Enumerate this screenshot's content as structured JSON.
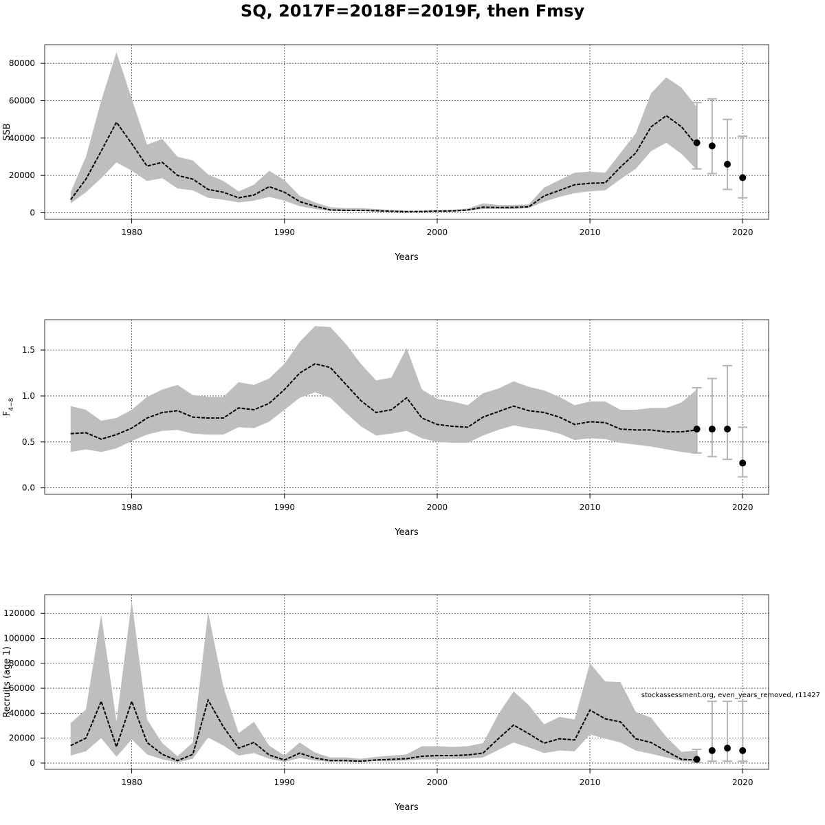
{
  "title": "SQ, 2017F=2018F=2019F, then Fmsy",
  "watermark": "stockassessment.org, even_years_removed, r11427",
  "chart_data": [
    {
      "type": "line",
      "xlabel": "Years",
      "ylabel": "SSB",
      "xlim": [
        1974.3,
        2021.7
      ],
      "ylim": [
        -3500,
        90000
      ],
      "xticks": [
        1980,
        1990,
        2000,
        2010,
        2020
      ],
      "yticks": [
        0,
        20000,
        40000,
        60000,
        80000
      ],
      "ytick_labels": [
        "0",
        "20000",
        "40000",
        "60000",
        "80000"
      ],
      "grid": true,
      "series": [
        {
          "role": "estimate",
          "x": [
            1976,
            1977,
            1978,
            1979,
            1980,
            1981,
            1982,
            1983,
            1984,
            1985,
            1986,
            1987,
            1988,
            1989,
            1990,
            1991,
            1992,
            1993,
            1994,
            1995,
            1996,
            1997,
            1998,
            1999,
            2000,
            2001,
            2002,
            2003,
            2004,
            2005,
            2006,
            2007,
            2008,
            2009,
            2010,
            2011,
            2012,
            2013,
            2014,
            2015,
            2016,
            2017
          ],
          "values": [
            7000,
            18000,
            33000,
            48500,
            37000,
            25000,
            27000,
            20000,
            18000,
            12500,
            11000,
            8000,
            9500,
            14000,
            11000,
            6000,
            3500,
            1500,
            1300,
            1300,
            1100,
            800,
            600,
            700,
            900,
            1000,
            1500,
            3000,
            2800,
            2900,
            3200,
            9000,
            12000,
            15000,
            15800,
            16000,
            24500,
            32000,
            46000,
            52000,
            46000,
            36000
          ]
        }
      ],
      "band": {
        "role": "confidence-interval",
        "lower": [
          5000,
          11000,
          18500,
          27000,
          22500,
          17000,
          18500,
          13000,
          12000,
          8000,
          7000,
          5500,
          6500,
          8500,
          6500,
          3500,
          2000,
          1000,
          900,
          900,
          700,
          500,
          400,
          400,
          600,
          600,
          1000,
          2000,
          2000,
          2000,
          2500,
          6000,
          8500,
          10500,
          11500,
          12000,
          18000,
          23500,
          33000,
          37500,
          31500,
          23000
        ],
        "upper": [
          11000,
          30000,
          60000,
          86000,
          61000,
          36500,
          39500,
          30000,
          28000,
          20500,
          17000,
          11500,
          15000,
          22500,
          17500,
          9000,
          5500,
          3000,
          2500,
          2500,
          2000,
          1500,
          1200,
          1100,
          1400,
          1600,
          2300,
          5000,
          4200,
          4200,
          4500,
          13500,
          17500,
          21500,
          22000,
          21500,
          32000,
          42500,
          64000,
          72500,
          67000,
          56500
        ]
      },
      "forecast": {
        "years": [
          2017,
          2018,
          2019,
          2020
        ],
        "values": [
          37500,
          35800,
          26000,
          18800
        ],
        "lower": [
          23500,
          21000,
          12500,
          8000
        ],
        "upper": [
          59000,
          61000,
          50000,
          41000
        ]
      }
    },
    {
      "type": "line",
      "xlabel": "Years",
      "ylabel": "F",
      "ylabel_subscript": "4−8",
      "xlim": [
        1974.3,
        2021.7
      ],
      "ylim": [
        -0.07,
        1.83
      ],
      "xticks": [
        1980,
        1990,
        2000,
        2010,
        2020
      ],
      "yticks": [
        0.0,
        0.5,
        1.0,
        1.5
      ],
      "ytick_labels": [
        "0.0",
        "0.5",
        "1.0",
        "1.5"
      ],
      "grid": true,
      "series": [
        {
          "role": "estimate",
          "x": [
            1976,
            1977,
            1978,
            1979,
            1980,
            1981,
            1982,
            1983,
            1984,
            1985,
            1986,
            1987,
            1988,
            1989,
            1990,
            1991,
            1992,
            1993,
            1994,
            1995,
            1996,
            1997,
            1998,
            1999,
            2000,
            2001,
            2002,
            2003,
            2004,
            2005,
            2006,
            2007,
            2008,
            2009,
            2010,
            2011,
            2012,
            2013,
            2014,
            2015,
            2016,
            2017
          ],
          "values": [
            0.59,
            0.6,
            0.53,
            0.58,
            0.65,
            0.76,
            0.82,
            0.84,
            0.77,
            0.76,
            0.76,
            0.87,
            0.85,
            0.92,
            1.07,
            1.25,
            1.35,
            1.31,
            1.13,
            0.95,
            0.82,
            0.85,
            0.98,
            0.76,
            0.69,
            0.67,
            0.66,
            0.77,
            0.83,
            0.89,
            0.84,
            0.82,
            0.77,
            0.69,
            0.72,
            0.71,
            0.64,
            0.63,
            0.63,
            0.61,
            0.61,
            0.63
          ]
        }
      ],
      "band": {
        "role": "confidence-interval",
        "lower": [
          0.39,
          0.42,
          0.39,
          0.43,
          0.51,
          0.58,
          0.62,
          0.63,
          0.59,
          0.58,
          0.58,
          0.66,
          0.65,
          0.72,
          0.85,
          0.98,
          1.04,
          0.98,
          0.82,
          0.67,
          0.57,
          0.59,
          0.62,
          0.54,
          0.5,
          0.49,
          0.49,
          0.57,
          0.63,
          0.68,
          0.65,
          0.63,
          0.59,
          0.52,
          0.54,
          0.53,
          0.49,
          0.47,
          0.45,
          0.42,
          0.39,
          0.37
        ],
        "upper": [
          0.89,
          0.85,
          0.73,
          0.76,
          0.85,
          0.99,
          1.07,
          1.12,
          1.01,
          0.99,
          0.99,
          1.15,
          1.12,
          1.19,
          1.35,
          1.59,
          1.76,
          1.75,
          1.57,
          1.35,
          1.17,
          1.2,
          1.52,
          1.07,
          0.97,
          0.94,
          0.9,
          1.03,
          1.08,
          1.16,
          1.1,
          1.06,
          0.99,
          0.9,
          0.94,
          0.94,
          0.85,
          0.85,
          0.87,
          0.87,
          0.93,
          1.07
        ]
      },
      "forecast": {
        "years": [
          2017,
          2018,
          2019,
          2020
        ],
        "values": [
          0.64,
          0.64,
          0.64,
          0.27
        ],
        "lower": [
          0.38,
          0.34,
          0.31,
          0.12
        ],
        "upper": [
          1.09,
          1.19,
          1.33,
          0.66
        ]
      }
    },
    {
      "type": "line",
      "xlabel": "Years",
      "ylabel": "Recruits (age 1)",
      "xlim": [
        1974.3,
        2021.7
      ],
      "ylim": [
        -5000,
        135000
      ],
      "xticks": [
        1980,
        1990,
        2000,
        2010,
        2020
      ],
      "yticks": [
        0,
        20000,
        40000,
        60000,
        80000,
        100000,
        120000
      ],
      "ytick_labels": [
        "0",
        "20000",
        "40000",
        "60000",
        "80000",
        "100000",
        "120000"
      ],
      "grid": true,
      "series": [
        {
          "role": "estimate",
          "x": [
            1976,
            1977,
            1978,
            1979,
            1980,
            1981,
            1982,
            1983,
            1984,
            1985,
            1986,
            1987,
            1988,
            1989,
            1990,
            1991,
            1992,
            1993,
            1994,
            1995,
            1996,
            1997,
            1998,
            1999,
            2000,
            2001,
            2002,
            2003,
            2004,
            2005,
            2006,
            2007,
            2008,
            2009,
            2010,
            2011,
            2012,
            2013,
            2014,
            2015,
            2016,
            2017
          ],
          "values": [
            14000,
            20000,
            49500,
            13000,
            49500,
            16500,
            7000,
            2000,
            7000,
            50500,
            29000,
            12000,
            16500,
            6500,
            2500,
            8000,
            4000,
            2000,
            2000,
            1500,
            2500,
            3000,
            3500,
            5500,
            6000,
            6000,
            6500,
            8000,
            19500,
            30500,
            23500,
            16000,
            19500,
            18500,
            42500,
            35500,
            33000,
            19500,
            16500,
            9500,
            3000,
            2500
          ]
        }
      ],
      "band": {
        "role": "confidence-interval",
        "lower": [
          6000,
          9500,
          20000,
          5000,
          19000,
          7000,
          3000,
          500,
          3500,
          20500,
          14000,
          6000,
          8000,
          3500,
          1000,
          4000,
          2000,
          1000,
          1000,
          1000,
          1500,
          1500,
          2000,
          3000,
          3000,
          3500,
          3500,
          4500,
          10500,
          16500,
          12500,
          8000,
          10000,
          9500,
          23000,
          19500,
          16500,
          10000,
          7500,
          4500,
          1500,
          1000
        ],
        "upper": [
          32000,
          43000,
          119000,
          33000,
          130000,
          35000,
          16000,
          5500,
          16500,
          121000,
          61000,
          24000,
          33000,
          14000,
          6000,
          16500,
          8500,
          4500,
          4500,
          3500,
          5000,
          6000,
          7000,
          13500,
          13500,
          13000,
          13500,
          16000,
          39000,
          57500,
          46500,
          31000,
          37000,
          35000,
          80000,
          65500,
          65000,
          41000,
          36500,
          21000,
          9000,
          10000
        ]
      },
      "forecast": {
        "years": [
          2017,
          2018,
          2019,
          2020
        ],
        "values": [
          3000,
          10000,
          12000,
          10000
        ],
        "lower": [
          500,
          1500,
          1500,
          1500
        ],
        "upper": [
          11000,
          49500,
          49500,
          49500
        ]
      }
    }
  ]
}
